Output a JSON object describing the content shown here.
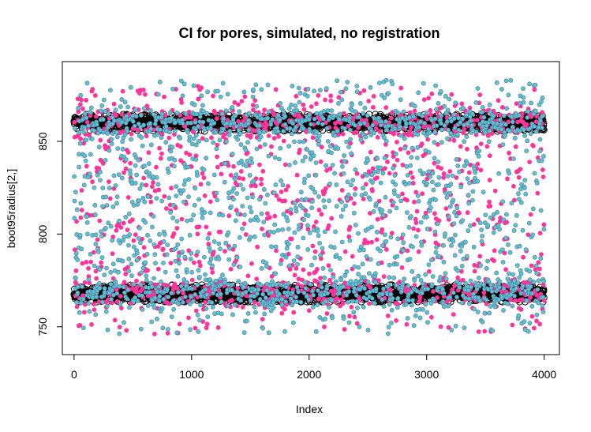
{
  "chart_data": {
    "type": "scatter",
    "title": "CI for pores, simulated, no registration",
    "xlabel": "Index",
    "ylabel": "boot95radius[2,]",
    "xlim": [
      -100,
      4130
    ],
    "ylim": [
      735,
      893
    ],
    "x_ticks": [
      0,
      1000,
      2000,
      3000,
      4000
    ],
    "y_ticks": [
      750,
      800,
      850
    ],
    "grid": false,
    "legend": "none",
    "n_points": 4000,
    "series": [
      {
        "role": "band-upper",
        "marker": "open-circle",
        "color": "#000000",
        "y_center": 860,
        "y_spread": [
          855,
          864
        ]
      },
      {
        "role": "band-lower",
        "marker": "open-circle",
        "color": "#000000",
        "y_center": 768,
        "y_spread": [
          763,
          772
        ]
      },
      {
        "role": "scatter-pink",
        "marker": "filled-circle",
        "color": "#ff3399",
        "y_range": [
          746,
          880
        ]
      },
      {
        "role": "scatter-cyan",
        "marker": "filled-circle",
        "color": "#4fc8cf",
        "y_range": [
          746,
          883
        ]
      }
    ],
    "colors": {
      "pink": "#ff3399",
      "cyan": "#4fc8cf",
      "cyan_edge": "#6a6aa0",
      "black": "#000000"
    }
  }
}
